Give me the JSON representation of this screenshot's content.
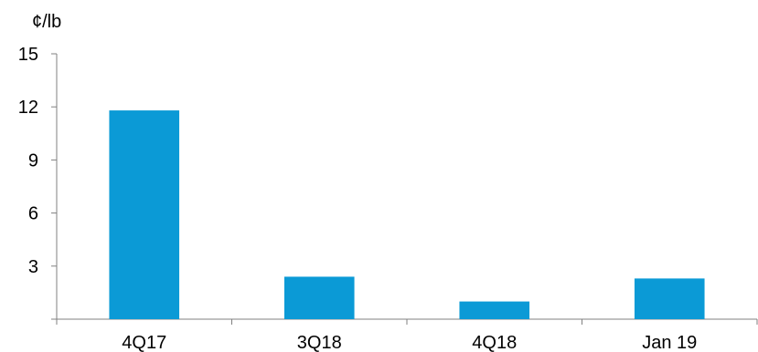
{
  "chart_data": {
    "type": "bar",
    "unit_label": "¢/lb",
    "categories": [
      "4Q17",
      "3Q18",
      "4Q18",
      "Jan 19"
    ],
    "values": [
      11.8,
      2.4,
      1.0,
      2.3
    ],
    "y_ticks": [
      "15",
      "12",
      "9",
      "6",
      "3"
    ],
    "ylim": [
      0,
      15
    ],
    "grid": false,
    "legend": "none",
    "bar_color": "#0b9ad6",
    "axis_color": "#808080"
  }
}
